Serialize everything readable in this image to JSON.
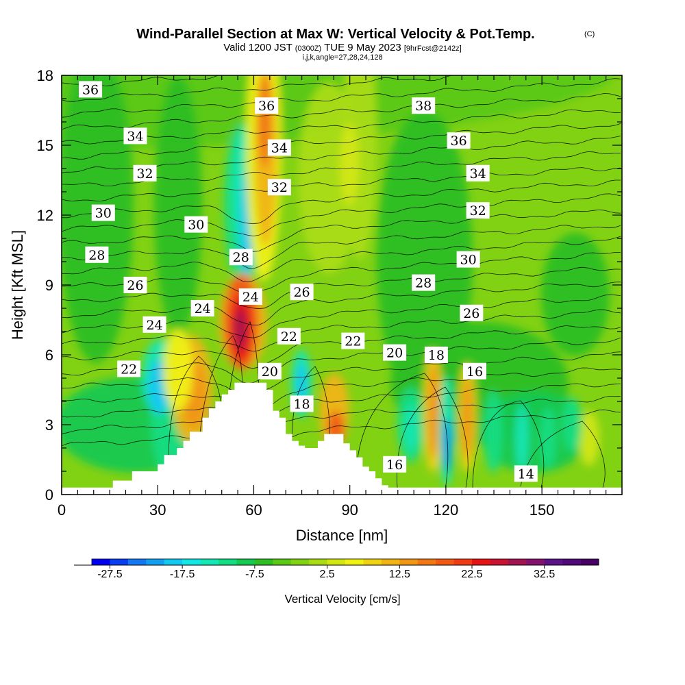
{
  "header": {
    "title": "Wind-Parallel Section at Max W: Vertical Velocity & Pot.Temp.",
    "title_suffix": "(C)",
    "subtitle_a": "Valid 1200 JST",
    "subtitle_b": "(0300Z)",
    "subtitle_c": "TUE 9 May 2023",
    "subtitle_d": "[9hrFcst@2142z]",
    "subtitle_line3": "i,j,k,angle=27,28,24,128"
  },
  "chart_data": {
    "type": "heatmap",
    "xlabel": "Distance [nm]",
    "ylabel": "Height [Kft MSL]",
    "xlim": [
      0,
      175
    ],
    "ylim": [
      0,
      18
    ],
    "x_ticks": [
      "0",
      "30",
      "60",
      "90",
      "120",
      "150"
    ],
    "x_tick_values": [
      0,
      30,
      60,
      90,
      120,
      150
    ],
    "y_ticks": [
      "0",
      "3",
      "6",
      "9",
      "12",
      "15",
      "18"
    ],
    "y_tick_values": [
      0,
      3,
      6,
      9,
      12,
      15,
      18
    ],
    "colorbar": {
      "title": "Vertical Velocity [cm/s]",
      "labels": [
        "-27.5",
        "-17.5",
        "-7.5",
        "2.5",
        "12.5",
        "22.5",
        "32.5"
      ],
      "label_values": [
        -27.5,
        -17.5,
        -7.5,
        2.5,
        12.5,
        22.5,
        32.5
      ],
      "min": -30,
      "max": 40,
      "step": 2.5,
      "colors": [
        "#0000f0",
        "#0a3cf0",
        "#1478f0",
        "#14a0f0",
        "#14c8f0",
        "#14e6e6",
        "#14e6b4",
        "#14dc82",
        "#14c850",
        "#2dbe23",
        "#5ac814",
        "#82d214",
        "#aadc14",
        "#d2e614",
        "#f0f014",
        "#f0d214",
        "#f0b414",
        "#f09614",
        "#f07814",
        "#f05a14",
        "#f03c14",
        "#e61414",
        "#c81432",
        "#a01450",
        "#82146e",
        "#5a1487",
        "#500a78",
        "#460064"
      ]
    },
    "contour_labels": [
      {
        "text": "36",
        "x": 9,
        "y": 17.4
      },
      {
        "text": "34",
        "x": 23,
        "y": 15.4
      },
      {
        "text": "32",
        "x": 26,
        "y": 13.8
      },
      {
        "text": "30",
        "x": 13,
        "y": 12.1
      },
      {
        "text": "28",
        "x": 11,
        "y": 10.3
      },
      {
        "text": "26",
        "x": 23,
        "y": 9.0
      },
      {
        "text": "24",
        "x": 29,
        "y": 7.3
      },
      {
        "text": "22",
        "x": 21,
        "y": 5.4
      },
      {
        "text": "30",
        "x": 42,
        "y": 11.6
      },
      {
        "text": "24",
        "x": 44,
        "y": 8.0
      },
      {
        "text": "28",
        "x": 56,
        "y": 10.2
      },
      {
        "text": "24",
        "x": 59,
        "y": 8.5
      },
      {
        "text": "36",
        "x": 64,
        "y": 16.7
      },
      {
        "text": "34",
        "x": 68,
        "y": 14.9
      },
      {
        "text": "32",
        "x": 68,
        "y": 13.2
      },
      {
        "text": "26",
        "x": 75,
        "y": 8.7
      },
      {
        "text": "22",
        "x": 71,
        "y": 6.8
      },
      {
        "text": "20",
        "x": 65,
        "y": 5.3
      },
      {
        "text": "18",
        "x": 75,
        "y": 3.9
      },
      {
        "text": "22",
        "x": 91,
        "y": 6.6
      },
      {
        "text": "20",
        "x": 104,
        "y": 6.1
      },
      {
        "text": "18",
        "x": 117,
        "y": 6.0
      },
      {
        "text": "16",
        "x": 129,
        "y": 5.3
      },
      {
        "text": "38",
        "x": 113,
        "y": 16.7
      },
      {
        "text": "36",
        "x": 124,
        "y": 15.2
      },
      {
        "text": "34",
        "x": 130,
        "y": 13.8
      },
      {
        "text": "32",
        "x": 130,
        "y": 12.2
      },
      {
        "text": "30",
        "x": 127,
        "y": 10.1
      },
      {
        "text": "28",
        "x": 113,
        "y": 9.1
      },
      {
        "text": "26",
        "x": 128,
        "y": 7.8
      },
      {
        "text": "16",
        "x": 104,
        "y": 1.3
      },
      {
        "text": "14",
        "x": 145,
        "y": 0.9
      }
    ],
    "terrain": [
      [
        0,
        0.3
      ],
      [
        14,
        0.3
      ],
      [
        16,
        0.6
      ],
      [
        20,
        0.6
      ],
      [
        22,
        1.0
      ],
      [
        28,
        1.0
      ],
      [
        30,
        1.3
      ],
      [
        32,
        1.7
      ],
      [
        34,
        1.7
      ],
      [
        36,
        2.0
      ],
      [
        38,
        2.3
      ],
      [
        40,
        2.7
      ],
      [
        42,
        2.7
      ],
      [
        44,
        3.3
      ],
      [
        46,
        3.7
      ],
      [
        48,
        4.0
      ],
      [
        50,
        4.3
      ],
      [
        52,
        4.5
      ],
      [
        54,
        4.8
      ],
      [
        58,
        4.8
      ],
      [
        60,
        4.8
      ],
      [
        62,
        4.8
      ],
      [
        64,
        4.5
      ],
      [
        66,
        3.6
      ],
      [
        68,
        3.3
      ],
      [
        70,
        2.6
      ],
      [
        72,
        2.3
      ],
      [
        74,
        2.1
      ],
      [
        76,
        2.0
      ],
      [
        78,
        2.0
      ],
      [
        80,
        2.3
      ],
      [
        82,
        2.6
      ],
      [
        86,
        2.6
      ],
      [
        88,
        2.2
      ],
      [
        90,
        1.9
      ],
      [
        92,
        1.6
      ],
      [
        94,
        1.2
      ],
      [
        96,
        1.0
      ],
      [
        98,
        0.7
      ],
      [
        100,
        0.4
      ],
      [
        102,
        0.3
      ],
      [
        175,
        0.3
      ]
    ]
  }
}
